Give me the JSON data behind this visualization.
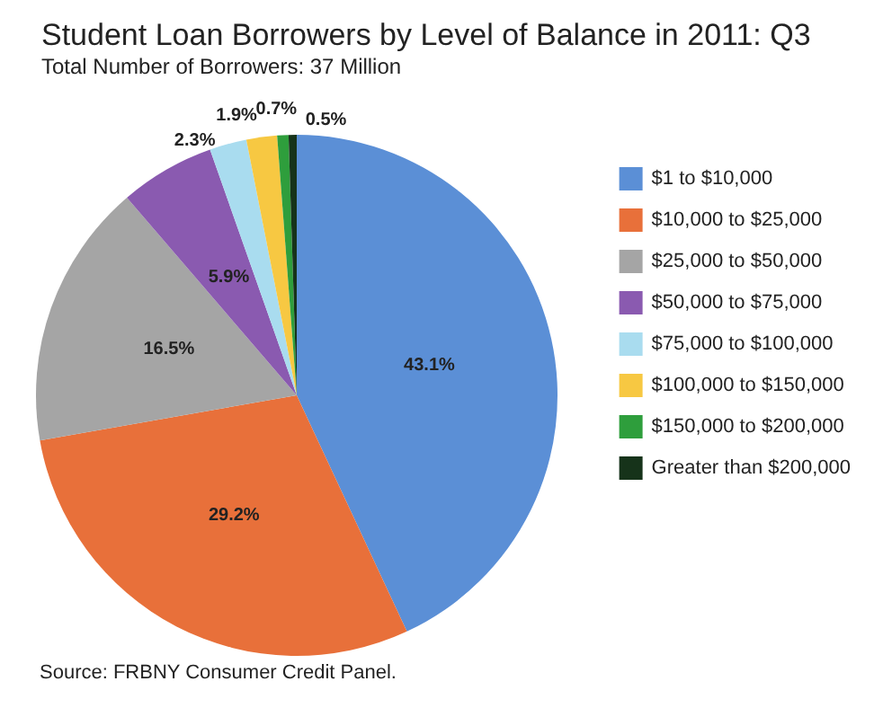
{
  "chart_data": {
    "type": "pie",
    "title": "Student Loan Borrowers by Level of Balance in 2011: Q3",
    "subtitle": "Total Number of Borrowers: 37 Million",
    "categories": [
      "$1 to $10,000",
      "$10,000 to $25,000",
      "$25,000 to $50,000",
      "$50,000 to $75,000",
      "$75,000 to $100,000",
      "$100,000 to $150,000",
      "$150,000 to $200,000",
      "Greater than $200,000"
    ],
    "values": [
      43.1,
      29.2,
      16.5,
      5.9,
      2.3,
      1.9,
      0.7,
      0.5
    ],
    "value_labels": [
      "43.1%",
      "29.2%",
      "16.5%",
      "5.9%",
      "2.3%",
      "1.9%",
      "0.7%",
      "0.5%"
    ],
    "colors": [
      "#5b8fd6",
      "#e8703a",
      "#a5a5a5",
      "#8a5ab0",
      "#a9dcef",
      "#f7c842",
      "#2e9e3c",
      "#16331a"
    ],
    "legend": "right",
    "annotations": [
      "Source: FRBNY Consumer Credit Panel."
    ]
  }
}
